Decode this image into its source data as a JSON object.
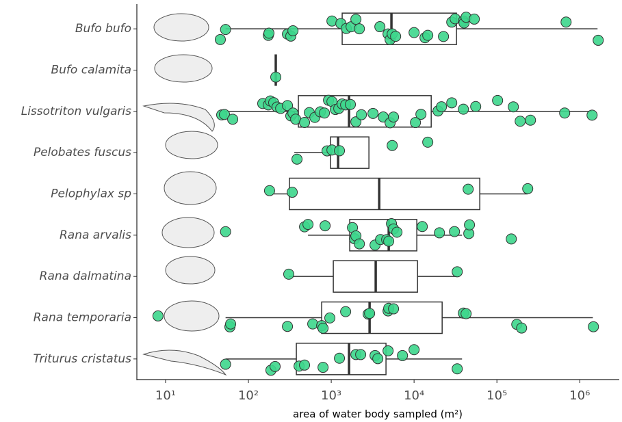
{
  "chart_data": {
    "type": "boxplot",
    "xlabel": "area of water body sampled (m²)",
    "xscale": "log",
    "xlim": [
      4.5,
      3000000
    ],
    "xticks": [
      {
        "value": 10,
        "label": "10¹"
      },
      {
        "value": 100,
        "label": "10²"
      },
      {
        "value": 1000,
        "label": "10³"
      },
      {
        "value": 10000,
        "label": "10⁴"
      },
      {
        "value": 100000,
        "label": "10⁵"
      },
      {
        "value": 1000000,
        "label": "10⁶"
      }
    ],
    "point_color": "#3dd68c",
    "series": [
      {
        "name": "Bufo bufo",
        "min": 53,
        "q1": 1355,
        "median": 5330,
        "q3": 32500,
        "max": 1640000,
        "points": [
          45.8,
          53,
          174,
          177,
          296,
          325,
          345,
          1020,
          1306,
          1520,
          1738,
          1985,
          2185,
          3864,
          4853,
          5140,
          5446,
          5988,
          10000,
          13560,
          14630,
          22650,
          28500,
          31330,
          39370,
          40100,
          42470,
          53300,
          683900,
          1671000
        ]
      },
      {
        "name": "Bufo calamita",
        "min": 214,
        "q1": 214,
        "median": 214,
        "q3": 214,
        "max": 214,
        "points": [
          214
        ]
      },
      {
        "name": "Lissotriton vulgaris",
        "min": 47,
        "q1": 401,
        "median": 1640,
        "q3": 16100,
        "max": 1410000,
        "points": [
          47.6,
          51.4,
          64.6,
          149,
          174,
          184,
          202,
          222,
          245,
          296,
          325,
          345,
          372,
          476,
          544,
          634,
          738,
          827,
          927,
          1020,
          1122,
          1233,
          1355,
          1492,
          1702,
          1985,
          2312,
          3192,
          4246,
          5140,
          5649,
          10390,
          12100,
          19450,
          21420,
          28500,
          39370,
          55460,
          101900,
          157800,
          191000,
          254100,
          657700,
          1409000
        ]
      },
      {
        "name": "Pelobates fuscus",
        "min": 358,
        "q1": 981,
        "median": 1210,
        "q3": 2851,
        "max": 2851,
        "points": [
          386,
          891,
          1020,
          1256,
          5446,
          14630
        ]
      },
      {
        "name": "Pelophylax sp",
        "min": 202,
        "q1": 313,
        "median": 3793,
        "q3": 62100,
        "max": 235500,
        "points": [
          180,
          338,
          44980,
          235500
        ]
      },
      {
        "name": "Rana arvalis",
        "min": 524,
        "q1": 1671,
        "median": 4943,
        "q3": 10790,
        "max": 37930,
        "points": [
          53,
          476,
          524,
          843,
          1804,
          1910,
          1985,
          2185,
          3380,
          3935,
          4670,
          4943,
          5335,
          5649,
          6213,
          12560,
          20230,
          30740,
          45800,
          46650,
          149200
        ]
      },
      {
        "name": "Rana dalmatina",
        "min": 307,
        "q1": 1059,
        "median": 3443,
        "q3": 11000,
        "max": 33180,
        "points": [
          307,
          33180
        ]
      },
      {
        "name": "Rana temporaria",
        "min": 53,
        "q1": 766,
        "median": 2904,
        "q3": 21820,
        "max": 1440000,
        "points": [
          8.1,
          59.8,
          61,
          296,
          598,
          766,
          796,
          962,
          1492,
          2793,
          2904,
          4853,
          4943,
          5649,
          39370,
          42470,
          173800,
          198600,
          1462000
        ]
      },
      {
        "name": "Triturus cristatus",
        "min": 53,
        "q1": 379,
        "median": 1640,
        "q3": 4581,
        "max": 37930,
        "points": [
          53,
          187,
          210,
          409,
          476,
          796,
          1256,
          1985,
          2266,
          3380,
          3648,
          4853,
          7244,
          10000,
          33180
        ]
      }
    ]
  }
}
